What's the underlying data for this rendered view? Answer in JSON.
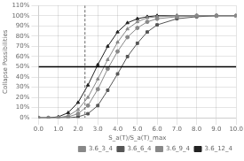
{
  "chart_data": {
    "type": "line",
    "title": "",
    "xlabel": "S_a(T)/S_a(T)_max",
    "ylabel": "Collapse Possibilities",
    "xlim": [
      0.0,
      10.0
    ],
    "ylim": [
      0.0,
      1.1
    ],
    "xticks": [
      {
        "value": 0.0,
        "label": "0.0"
      },
      {
        "value": 1.0,
        "label": "1.0"
      },
      {
        "value": 2.0,
        "label": "2.0"
      },
      {
        "value": 3.0,
        "label": "3.0"
      },
      {
        "value": 4.0,
        "label": "4.0"
      },
      {
        "value": 5.0,
        "label": "5.0"
      },
      {
        "value": 6.0,
        "label": "6.0"
      },
      {
        "value": 7.0,
        "label": "7.0"
      },
      {
        "value": 8.0,
        "label": "8.0"
      },
      {
        "value": 9.0,
        "label": "9.0"
      },
      {
        "value": 10.0,
        "label": "10.0"
      }
    ],
    "yticks": [
      {
        "value": 0.0,
        "label": "0%"
      },
      {
        "value": 0.1,
        "label": "10%"
      },
      {
        "value": 0.2,
        "label": "20%"
      },
      {
        "value": 0.3,
        "label": "30%"
      },
      {
        "value": 0.4,
        "label": "40%"
      },
      {
        "value": 0.5,
        "label": "50%"
      },
      {
        "value": 0.6,
        "label": "60%"
      },
      {
        "value": 0.7,
        "label": "70%"
      },
      {
        "value": 0.8,
        "label": "80%"
      },
      {
        "value": 0.9,
        "label": "90%"
      },
      {
        "value": 1.0,
        "label": "100%"
      },
      {
        "value": 1.1,
        "label": "110%"
      }
    ],
    "grid": true,
    "legend": "lower right",
    "hline": {
      "value": 0.5,
      "color": "#000000"
    },
    "vline": {
      "value": 2.35,
      "color": "#666666"
    },
    "x": [
      0.0,
      0.5,
      1.0,
      1.5,
      2.0,
      2.5,
      3.0,
      3.5,
      4.0,
      4.5,
      5.0,
      5.5,
      6.0,
      7.0,
      8.0,
      9.0,
      10.0
    ],
    "series": [
      {
        "name": "3.6_3_4",
        "color": "#888888",
        "marker": "circle",
        "line_style": "solid",
        "values": [
          0.0,
          0.0,
          0.0,
          0.01,
          0.04,
          0.12,
          0.28,
          0.48,
          0.65,
          0.79,
          0.88,
          0.94,
          0.97,
          0.99,
          1.0,
          1.0,
          1.0
        ]
      },
      {
        "name": "3.6_6_4",
        "color": "#555555",
        "marker": "square",
        "line_style": "solid",
        "values": [
          0.0,
          0.0,
          0.0,
          0.0,
          0.01,
          0.04,
          0.12,
          0.27,
          0.43,
          0.6,
          0.73,
          0.84,
          0.91,
          0.97,
          0.99,
          1.0,
          1.0
        ]
      },
      {
        "name": "3.6_9_4",
        "color": "#888888",
        "marker": "triangle",
        "line_style": "solid",
        "values": [
          0.0,
          0.0,
          0.0,
          0.02,
          0.08,
          0.2,
          0.38,
          0.57,
          0.74,
          0.87,
          0.94,
          0.98,
          0.99,
          1.0,
          1.0,
          1.0,
          1.0
        ]
      },
      {
        "name": "3.6_12_4",
        "color": "#222222",
        "marker": "triangle",
        "line_style": "solid",
        "values": [
          0.0,
          0.0,
          0.01,
          0.05,
          0.15,
          0.32,
          0.52,
          0.7,
          0.84,
          0.93,
          0.97,
          0.99,
          1.0,
          1.0,
          1.0,
          1.0,
          1.0
        ]
      }
    ]
  }
}
